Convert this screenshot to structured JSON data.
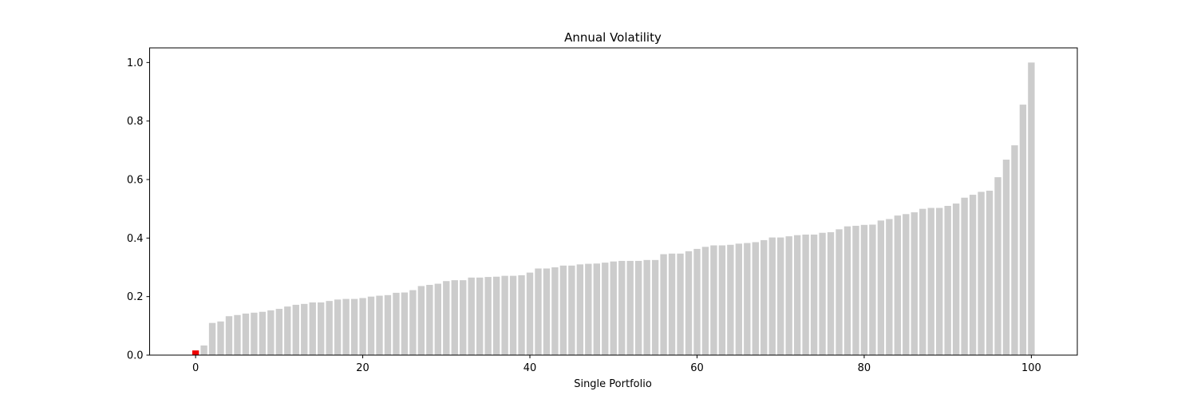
{
  "chart_data": {
    "type": "bar",
    "title": "Annual Volatility",
    "xlabel": "Single Portfolio",
    "ylabel": "",
    "xlim": [
      -5.5,
      105.5
    ],
    "ylim": [
      0,
      1.05
    ],
    "xticks": [
      0,
      20,
      40,
      60,
      80,
      100
    ],
    "yticks": [
      0.0,
      0.2,
      0.4,
      0.6,
      0.8,
      1.0
    ],
    "xtick_labels": [
      "0",
      "20",
      "40",
      "60",
      "80",
      "100"
    ],
    "ytick_labels": [
      "0.0",
      "0.2",
      "0.4",
      "0.6",
      "0.8",
      "1.0"
    ],
    "grid": false,
    "highlight_index": 0,
    "colors": {
      "bar": "#cccccc",
      "highlight": "#ee0000",
      "axis": "#000000"
    },
    "x": [
      0,
      1,
      2,
      3,
      4,
      5,
      6,
      7,
      8,
      9,
      10,
      11,
      12,
      13,
      14,
      15,
      16,
      17,
      18,
      19,
      20,
      21,
      22,
      23,
      24,
      25,
      26,
      27,
      28,
      29,
      30,
      31,
      32,
      33,
      34,
      35,
      36,
      37,
      38,
      39,
      40,
      41,
      42,
      43,
      44,
      45,
      46,
      47,
      48,
      49,
      50,
      51,
      52,
      53,
      54,
      55,
      56,
      57,
      58,
      59,
      60,
      61,
      62,
      63,
      64,
      65,
      66,
      67,
      68,
      69,
      70,
      71,
      72,
      73,
      74,
      75,
      76,
      77,
      78,
      79,
      80,
      81,
      82,
      83,
      84,
      85,
      86,
      87,
      88,
      89,
      90,
      91,
      92,
      93,
      94,
      95,
      96,
      97,
      98,
      99,
      100
    ],
    "values": [
      0.016,
      0.033,
      0.11,
      0.115,
      0.133,
      0.137,
      0.142,
      0.145,
      0.148,
      0.153,
      0.158,
      0.166,
      0.172,
      0.175,
      0.18,
      0.18,
      0.185,
      0.19,
      0.192,
      0.192,
      0.195,
      0.2,
      0.203,
      0.205,
      0.213,
      0.214,
      0.222,
      0.236,
      0.24,
      0.244,
      0.253,
      0.256,
      0.256,
      0.265,
      0.265,
      0.267,
      0.268,
      0.271,
      0.271,
      0.273,
      0.282,
      0.296,
      0.296,
      0.3,
      0.306,
      0.306,
      0.31,
      0.312,
      0.313,
      0.316,
      0.32,
      0.322,
      0.322,
      0.322,
      0.325,
      0.325,
      0.345,
      0.347,
      0.347,
      0.355,
      0.363,
      0.37,
      0.375,
      0.375,
      0.377,
      0.381,
      0.383,
      0.386,
      0.393,
      0.402,
      0.402,
      0.406,
      0.41,
      0.412,
      0.412,
      0.418,
      0.42,
      0.43,
      0.44,
      0.442,
      0.445,
      0.446,
      0.46,
      0.465,
      0.477,
      0.482,
      0.488,
      0.5,
      0.503,
      0.503,
      0.51,
      0.518,
      0.538,
      0.548,
      0.558,
      0.562,
      0.608,
      0.668,
      0.717,
      0.856,
      1.0
    ]
  }
}
